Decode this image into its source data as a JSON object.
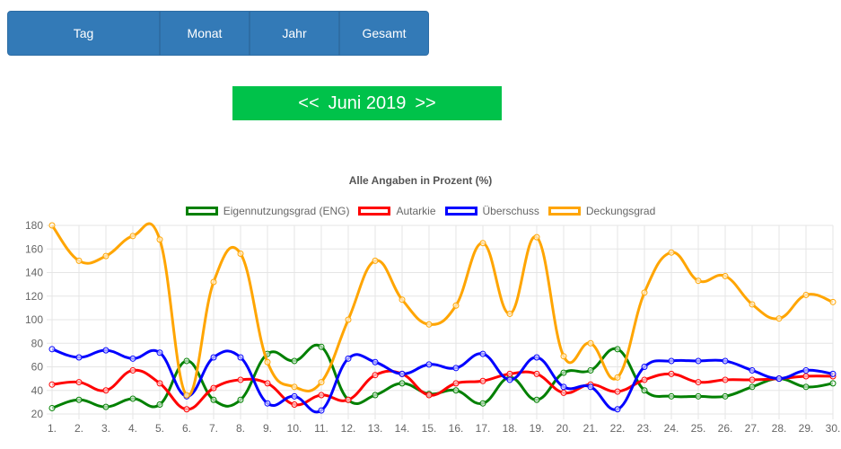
{
  "tabs": {
    "day": "Tag",
    "month": "Monat",
    "year": "Jahr",
    "total": "Gesamt"
  },
  "period": {
    "prev": "<<",
    "label": "Juni 2019",
    "next": ">>"
  },
  "chart_data": {
    "type": "line",
    "title": "Alle Angaben in Prozent (%)",
    "xlabel": "",
    "ylabel": "",
    "ylim": [
      20,
      180
    ],
    "yticks": [
      20,
      40,
      60,
      80,
      100,
      120,
      140,
      160,
      180
    ],
    "grid": true,
    "legend_position": "top",
    "categories": [
      "1.",
      "2.",
      "3.",
      "4.",
      "5.",
      "6.",
      "7.",
      "8.",
      "9.",
      "10.",
      "11.",
      "12.",
      "13.",
      "14.",
      "15.",
      "16.",
      "17.",
      "18.",
      "19.",
      "20.",
      "21.",
      "22.",
      "23.",
      "24.",
      "25.",
      "26.",
      "27.",
      "28.",
      "29.",
      "30."
    ],
    "series": [
      {
        "name": "Eigennutzungsgrad (ENG)",
        "color": "#008000",
        "values": [
          25,
          32,
          26,
          33,
          28,
          65,
          32,
          32,
          71,
          65,
          77,
          32,
          36,
          46,
          37,
          40,
          29,
          51,
          32,
          55,
          57,
          75,
          40,
          35,
          35,
          35,
          43,
          50,
          43,
          46
        ]
      },
      {
        "name": "Autarkie",
        "color": "#ff0000",
        "values": [
          45,
          47,
          40,
          57,
          46,
          24,
          42,
          49,
          46,
          28,
          36,
          32,
          53,
          54,
          36,
          46,
          48,
          54,
          54,
          38,
          45,
          39,
          49,
          54,
          47,
          49,
          49,
          50,
          52,
          52
        ]
      },
      {
        "name": "Überschuss",
        "color": "#0000ff",
        "values": [
          75,
          68,
          74,
          67,
          72,
          35,
          68,
          68,
          29,
          35,
          23,
          67,
          64,
          54,
          62,
          59,
          71,
          49,
          68,
          43,
          43,
          24,
          60,
          65,
          65,
          65,
          57,
          50,
          57,
          54
        ]
      },
      {
        "name": "Deckungsgrad",
        "color": "#ffa500",
        "values": [
          180,
          150,
          154,
          171,
          168,
          36,
          132,
          156,
          64,
          43,
          47,
          100,
          150,
          117,
          96,
          112,
          165,
          105,
          170,
          69,
          80,
          51,
          123,
          157,
          133,
          137,
          113,
          101,
          121,
          115
        ]
      }
    ]
  }
}
